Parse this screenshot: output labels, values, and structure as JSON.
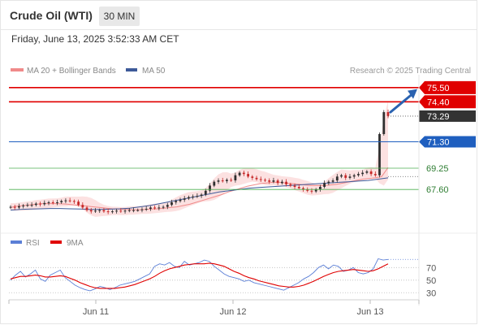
{
  "header": {
    "title": "Crude Oil (WTI)",
    "timeframe": "30 MIN",
    "timestamp": "Friday, June 13, 2025 3:52:33 AM CET"
  },
  "legend": {
    "ma20_bb": "MA 20 + Bollinger Bands",
    "ma50": "MA 50",
    "credit": "Research © 2025 Trading Central",
    "rsi": "RSI",
    "ma9": "9MA"
  },
  "colors": {
    "bollinger_fill": "#fcdcdc",
    "ma20": "#f08a8a",
    "ma50": "#3d5a99",
    "red_level": "#e00000",
    "blue_level": "#1f5fbf",
    "green_level": "#4caf50",
    "current_price": "#333333",
    "candle_up": "#2f2f2f",
    "candle_down": "#c62828",
    "rsi": "#5b7fd6",
    "rsi_ma": "#e00000",
    "arrow": "#2a62b0"
  },
  "chart_data": [
    {
      "type": "candlestick",
      "ylim": [
        64.9,
        76.5
      ],
      "x_ticks": [
        "Jun 11",
        "Jun 12",
        "Jun 13"
      ],
      "levels": [
        {
          "value": 75.5,
          "label": "75.50",
          "style": "red"
        },
        {
          "value": 74.4,
          "label": "74.40",
          "style": "red"
        },
        {
          "value": 71.3,
          "label": "71.30",
          "style": "blue"
        },
        {
          "value": 69.25,
          "label": "69.25",
          "style": "green"
        },
        {
          "value": 67.6,
          "label": "67.60",
          "style": "green"
        }
      ],
      "current_price": {
        "value": 73.29,
        "label": "73.29"
      },
      "close": [
        66.25,
        66.2,
        66.3,
        66.35,
        66.4,
        66.4,
        66.5,
        66.45,
        66.55,
        66.6,
        66.55,
        66.6,
        66.7,
        66.75,
        66.7,
        66.65,
        66.4,
        66.2,
        66.0,
        65.9,
        65.95,
        66.0,
        65.9,
        65.85,
        65.9,
        65.95,
        65.9,
        65.95,
        66.0,
        66.0,
        66.0,
        66.05,
        66.1,
        66.2,
        66.15,
        66.2,
        66.25,
        66.4,
        66.6,
        66.7,
        66.8,
        66.9,
        67.0,
        67.05,
        67.1,
        67.2,
        67.5,
        67.9,
        68.2,
        68.3,
        68.25,
        68.35,
        68.3,
        68.7,
        68.9,
        68.8,
        68.6,
        68.5,
        68.4,
        68.35,
        68.3,
        68.2,
        68.3,
        68.1,
        68.2,
        68.0,
        67.9,
        67.8,
        67.7,
        67.6,
        67.5,
        67.45,
        67.6,
        67.8,
        68.1,
        68.2,
        68.3,
        68.6,
        68.7,
        68.5,
        68.6,
        68.7,
        68.8,
        68.9,
        69.0,
        68.8,
        68.7,
        71.9,
        73.6,
        73.3
      ],
      "ma20": [
        66.2,
        66.3,
        66.35,
        66.4,
        66.45,
        66.5,
        66.5,
        66.5,
        66.48,
        66.45,
        66.4,
        66.35,
        66.3,
        66.25,
        66.2,
        66.15,
        66.1,
        66.07,
        66.05,
        66.03,
        66.02,
        66.05,
        66.08,
        66.1,
        66.15,
        66.2,
        66.25,
        66.35,
        66.45,
        66.6,
        66.75,
        66.9,
        67.05,
        67.2,
        67.4,
        67.55,
        67.7,
        67.85,
        67.95,
        68.05,
        68.1,
        68.15,
        68.15,
        68.1,
        68.05,
        68.0,
        67.95,
        67.9,
        67.9,
        67.9,
        67.95,
        68.0,
        68.1,
        68.2,
        68.3,
        68.4,
        68.45,
        68.5,
        68.6,
        69.3
      ],
      "ma50": [
        66.0,
        66.05,
        66.08,
        66.1,
        66.12,
        66.12,
        66.1,
        66.08,
        66.05,
        66.05,
        66.07,
        66.1,
        66.15,
        66.25,
        66.35,
        66.5,
        66.65,
        66.8,
        66.95,
        67.1,
        67.25,
        67.4,
        67.5,
        67.6,
        67.7,
        67.75,
        67.8,
        67.85,
        67.9,
        67.95,
        68.0,
        68.05,
        68.1,
        68.15,
        68.2,
        68.25,
        68.3,
        68.4,
        68.5
      ]
    },
    {
      "type": "line",
      "ylim": [
        20,
        95
      ],
      "y_ticks": [
        70,
        50,
        30
      ],
      "series": [
        {
          "name": "RSI",
          "values": [
            50,
            58,
            64,
            55,
            60,
            66,
            52,
            48,
            58,
            62,
            66,
            54,
            48,
            42,
            38,
            35,
            33,
            36,
            40,
            38,
            35,
            38,
            42,
            44,
            46,
            48,
            52,
            56,
            60,
            72,
            76,
            74,
            78,
            72,
            70,
            80,
            74,
            76,
            78,
            82,
            80,
            72,
            66,
            60,
            56,
            54,
            52,
            48,
            50,
            46,
            44,
            42,
            40,
            38,
            36,
            34,
            38,
            42,
            46,
            52,
            56,
            62,
            70,
            74,
            68,
            74,
            72,
            64,
            66,
            70,
            62,
            60,
            62,
            68,
            84,
            82,
            83
          ]
        },
        {
          "name": "9MA",
          "values": [
            52,
            54,
            56,
            56,
            57,
            58,
            57,
            55,
            55,
            56,
            57,
            56,
            53,
            50,
            46,
            43,
            40,
            38,
            37,
            37,
            37,
            37,
            38,
            39,
            41,
            43,
            46,
            49,
            52,
            56,
            61,
            65,
            68,
            70,
            72,
            74,
            75,
            76,
            76,
            76,
            77,
            76,
            74,
            72,
            68,
            64,
            61,
            57,
            54,
            52,
            49,
            47,
            45,
            43,
            41,
            40,
            39,
            39,
            40,
            42,
            45,
            48,
            52,
            56,
            59,
            62,
            64,
            65,
            66,
            67,
            66,
            65,
            64,
            65,
            68,
            72,
            76
          ]
        }
      ]
    }
  ]
}
